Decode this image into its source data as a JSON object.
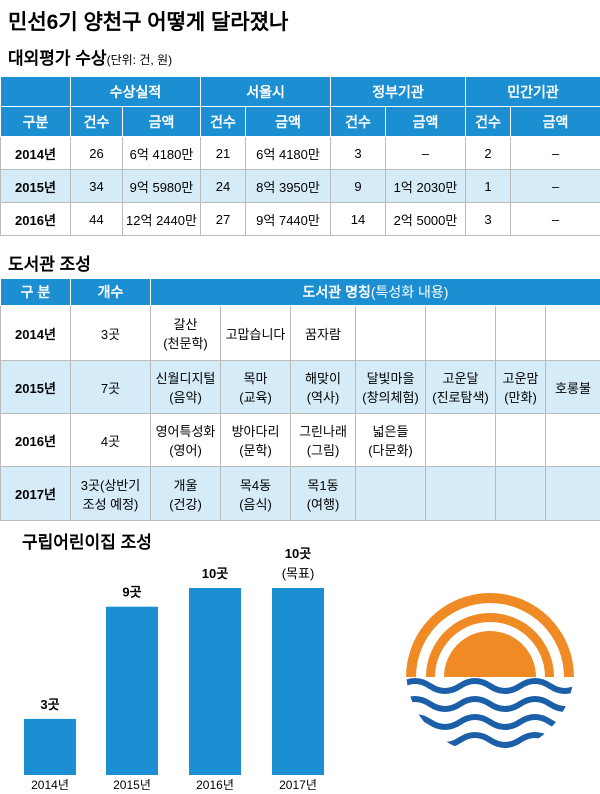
{
  "header": {
    "title": "민선6기 양천구 어떻게 달라졌나"
  },
  "awards": {
    "title": "대외평가 수상",
    "unit": "(단위: 건, 원)",
    "groups": [
      "수상실적",
      "서울시",
      "정부기관",
      "민간기관"
    ],
    "columns": [
      "구분",
      "건수",
      "금액",
      "건수",
      "금액",
      "건수",
      "금액",
      "건수",
      "금액"
    ],
    "rows": [
      [
        "2014년",
        "26",
        "6억 4180만",
        "21",
        "6억 4180만",
        "3",
        "–",
        "2",
        "–"
      ],
      [
        "2015년",
        "34",
        "9억 5980만",
        "24",
        "8억 3950만",
        "9",
        "1억 2030만",
        "1",
        "–"
      ],
      [
        "2016년",
        "44",
        "12억 2440만",
        "27",
        "9억 7440만",
        "14",
        "2억 5000만",
        "3",
        "–"
      ]
    ]
  },
  "libraries": {
    "title": "도서관 조성",
    "columns": [
      "구 분",
      "개수",
      "도서관 명칭",
      "(특성화 내용)"
    ],
    "rows": [
      {
        "year": "2014년",
        "count": "3곳",
        "names": [
          {
            "name": "갈산",
            "note": "(천문학)"
          },
          {
            "name": "고맙습니다"
          },
          {
            "name": "꿈자람"
          }
        ]
      },
      {
        "year": "2015년",
        "count": "7곳",
        "names": [
          {
            "name": "신월디지털",
            "note": "(음악)"
          },
          {
            "name": "목마",
            "note": "(교육)"
          },
          {
            "name": "해맞이",
            "note": "(역사)"
          },
          {
            "name": "달빛마을",
            "note": "(창의체험)"
          },
          {
            "name": "고운달",
            "note": "(진로탐색)"
          },
          {
            "name": "고운맘",
            "note": "(만화)"
          },
          {
            "name": "호롱불"
          }
        ]
      },
      {
        "year": "2016년",
        "count": "4곳",
        "names": [
          {
            "name": "영어특성화",
            "note": "(영어)"
          },
          {
            "name": "방아다리",
            "note": "(문학)"
          },
          {
            "name": "그린나래",
            "note": "(그림)"
          },
          {
            "name": "넓은들",
            "note": "(다문화)"
          }
        ]
      },
      {
        "year": "2017년",
        "count": "3곳(상반기 조성 예정)",
        "names": [
          {
            "name": "개울",
            "note": "(건강)"
          },
          {
            "name": "목4동",
            "note": "(음식)"
          },
          {
            "name": "목1동",
            "note": "(여행)"
          }
        ]
      }
    ]
  },
  "chart_data": {
    "type": "bar",
    "title": "구립어린이집 조성",
    "categories": [
      "2014년",
      "2015년",
      "2016년",
      "2017년"
    ],
    "values": [
      3,
      9,
      10,
      10
    ],
    "value_labels": [
      "3곳",
      "9곳",
      "10곳",
      "10곳"
    ],
    "value_notes": [
      null,
      null,
      null,
      "(목표)"
    ],
    "color": "#1b8fd2"
  }
}
